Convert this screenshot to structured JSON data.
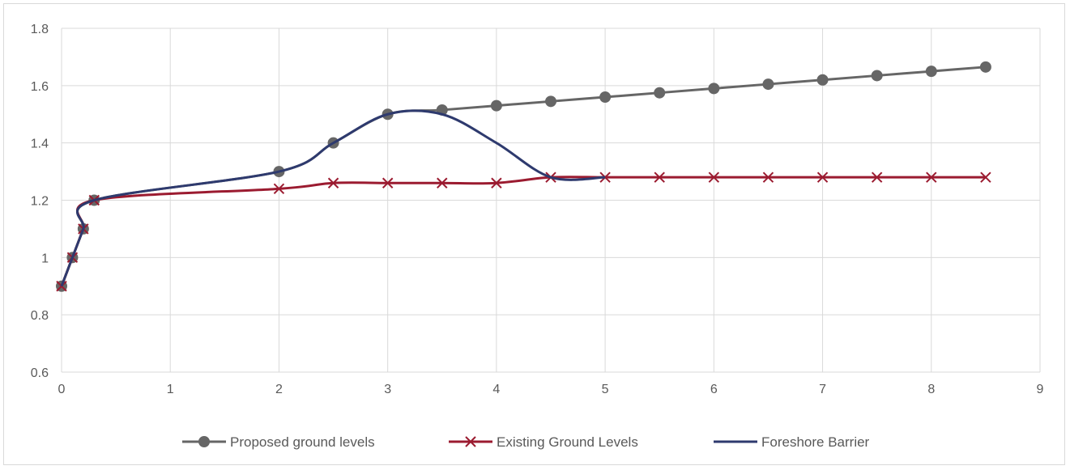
{
  "chart_data": {
    "type": "line",
    "title": "",
    "xlabel": "",
    "ylabel": "",
    "xlim": [
      0,
      9
    ],
    "ylim": [
      0.6,
      1.8
    ],
    "x_ticks": [
      0,
      1,
      2,
      3,
      4,
      5,
      6,
      7,
      8,
      9
    ],
    "y_ticks": [
      0.6,
      0.8,
      1,
      1.2,
      1.4,
      1.6,
      1.8
    ],
    "x_tick_labels": [
      "0",
      "1",
      "2",
      "3",
      "4",
      "5",
      "6",
      "7",
      "8",
      "9"
    ],
    "y_tick_labels": [
      "0.6",
      "0.8",
      "1",
      "1.2",
      "1.4",
      "1.6",
      "1.8"
    ],
    "grid": true,
    "smooth": true,
    "legend_position": "bottom",
    "series": [
      {
        "name": "Proposed ground levels",
        "color": "#666666",
        "marker": "circle",
        "x": [
          0,
          0.1,
          0.2,
          0.3,
          2,
          2.5,
          3,
          3.5,
          4,
          4.5,
          5,
          5.5,
          6,
          6.5,
          7,
          7.5,
          8,
          8.5
        ],
        "y": [
          0.9,
          1.0,
          1.1,
          1.2,
          1.3,
          1.4,
          1.5,
          1.515,
          1.53,
          1.545,
          1.56,
          1.575,
          1.59,
          1.605,
          1.62,
          1.635,
          1.65,
          1.665
        ]
      },
      {
        "name": "Existing Ground Levels",
        "color": "#9b1b30",
        "marker": "x",
        "x": [
          0,
          0.1,
          0.2,
          0.3,
          2,
          2.5,
          3,
          3.5,
          4,
          4.5,
          5,
          5.5,
          6,
          6.5,
          7,
          7.5,
          8,
          8.5
        ],
        "y": [
          0.9,
          1.0,
          1.1,
          1.2,
          1.24,
          1.26,
          1.26,
          1.26,
          1.26,
          1.28,
          1.28,
          1.28,
          1.28,
          1.28,
          1.28,
          1.28,
          1.28,
          1.28
        ]
      },
      {
        "name": "Foreshore Barrier",
        "color": "#2e3a6e",
        "marker": "none",
        "x": [
          0,
          0.1,
          0.2,
          0.3,
          2,
          2.5,
          3,
          3.5,
          4,
          4.5,
          5
        ],
        "y": [
          0.9,
          1.0,
          1.1,
          1.2,
          1.3,
          1.4,
          1.5,
          1.5,
          1.4,
          1.28,
          1.28
        ]
      }
    ]
  }
}
